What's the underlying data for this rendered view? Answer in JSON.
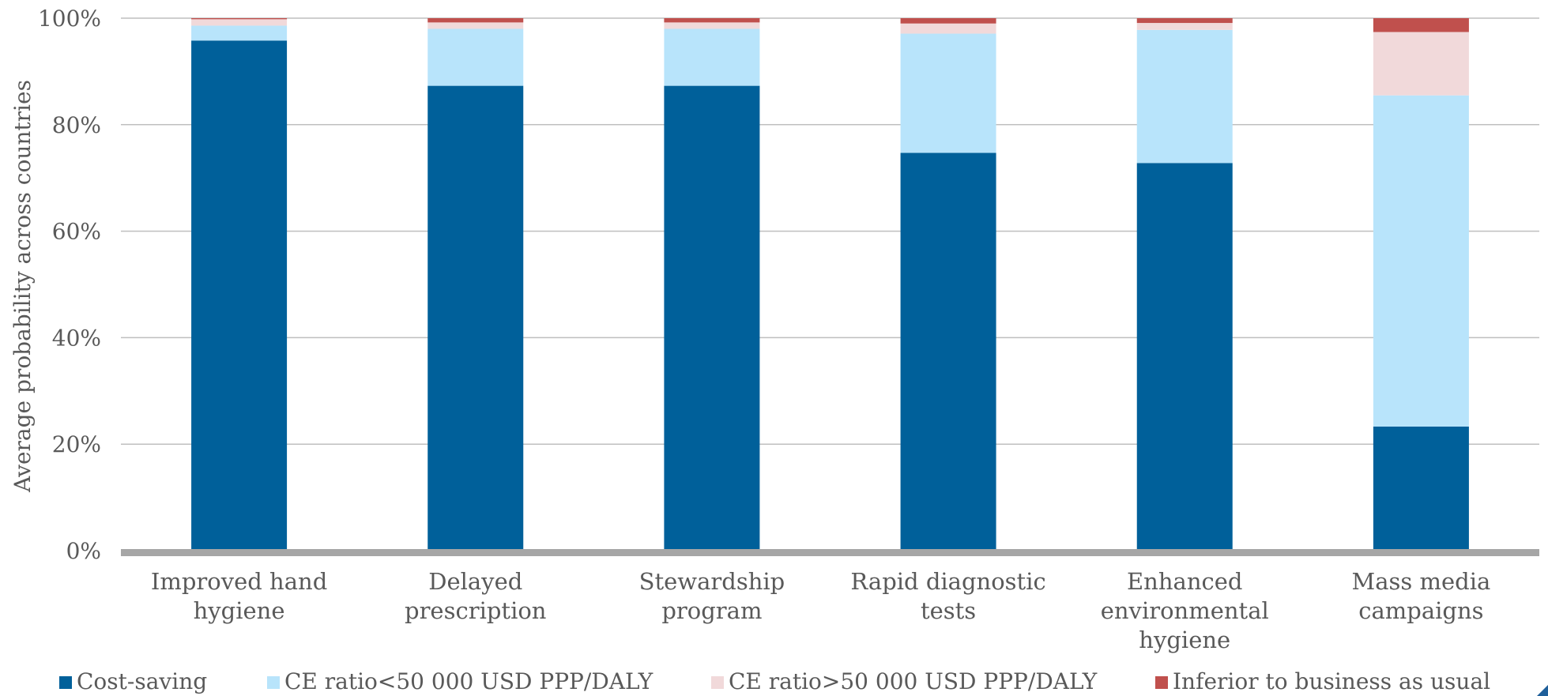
{
  "chart_data": {
    "type": "bar",
    "stacked": true,
    "title": "",
    "xlabel": "",
    "ylabel": "Average probability  across countries",
    "ylim": [
      0,
      100
    ],
    "yticks": [
      "0%",
      "20%",
      "40%",
      "60%",
      "80%",
      "100%"
    ],
    "grid": true,
    "legend_position": "bottom",
    "categories": [
      [
        "Improved hand",
        "hygiene"
      ],
      [
        "Delayed",
        "prescription"
      ],
      [
        "Stewardship",
        "program"
      ],
      [
        "Rapid diagnostic",
        "tests"
      ],
      [
        "Enhanced",
        "environmental",
        "hygiene"
      ],
      [
        "Mass media",
        "campaigns"
      ]
    ],
    "series": [
      {
        "name": "Cost-saving",
        "color": "#00609a",
        "values": [
          95.8,
          87.3,
          87.3,
          74.7,
          72.8,
          23.3
        ]
      },
      {
        "name": "CE ratio<50 000 USD PPP/DALY",
        "color": "#b8e4fb",
        "values": [
          2.8,
          10.7,
          10.7,
          22.4,
          25.0,
          62.2
        ]
      },
      {
        "name": "CE ratio>50 000 USD PPP/DALY",
        "color": "#f1d9da",
        "values": [
          1.2,
          1.2,
          1.2,
          1.9,
          1.3,
          11.9
        ]
      },
      {
        "name": "Inferior to business as usual",
        "color": "#c0504d",
        "values": [
          0.2,
          0.8,
          0.8,
          1.0,
          0.9,
          2.6
        ]
      }
    ]
  }
}
